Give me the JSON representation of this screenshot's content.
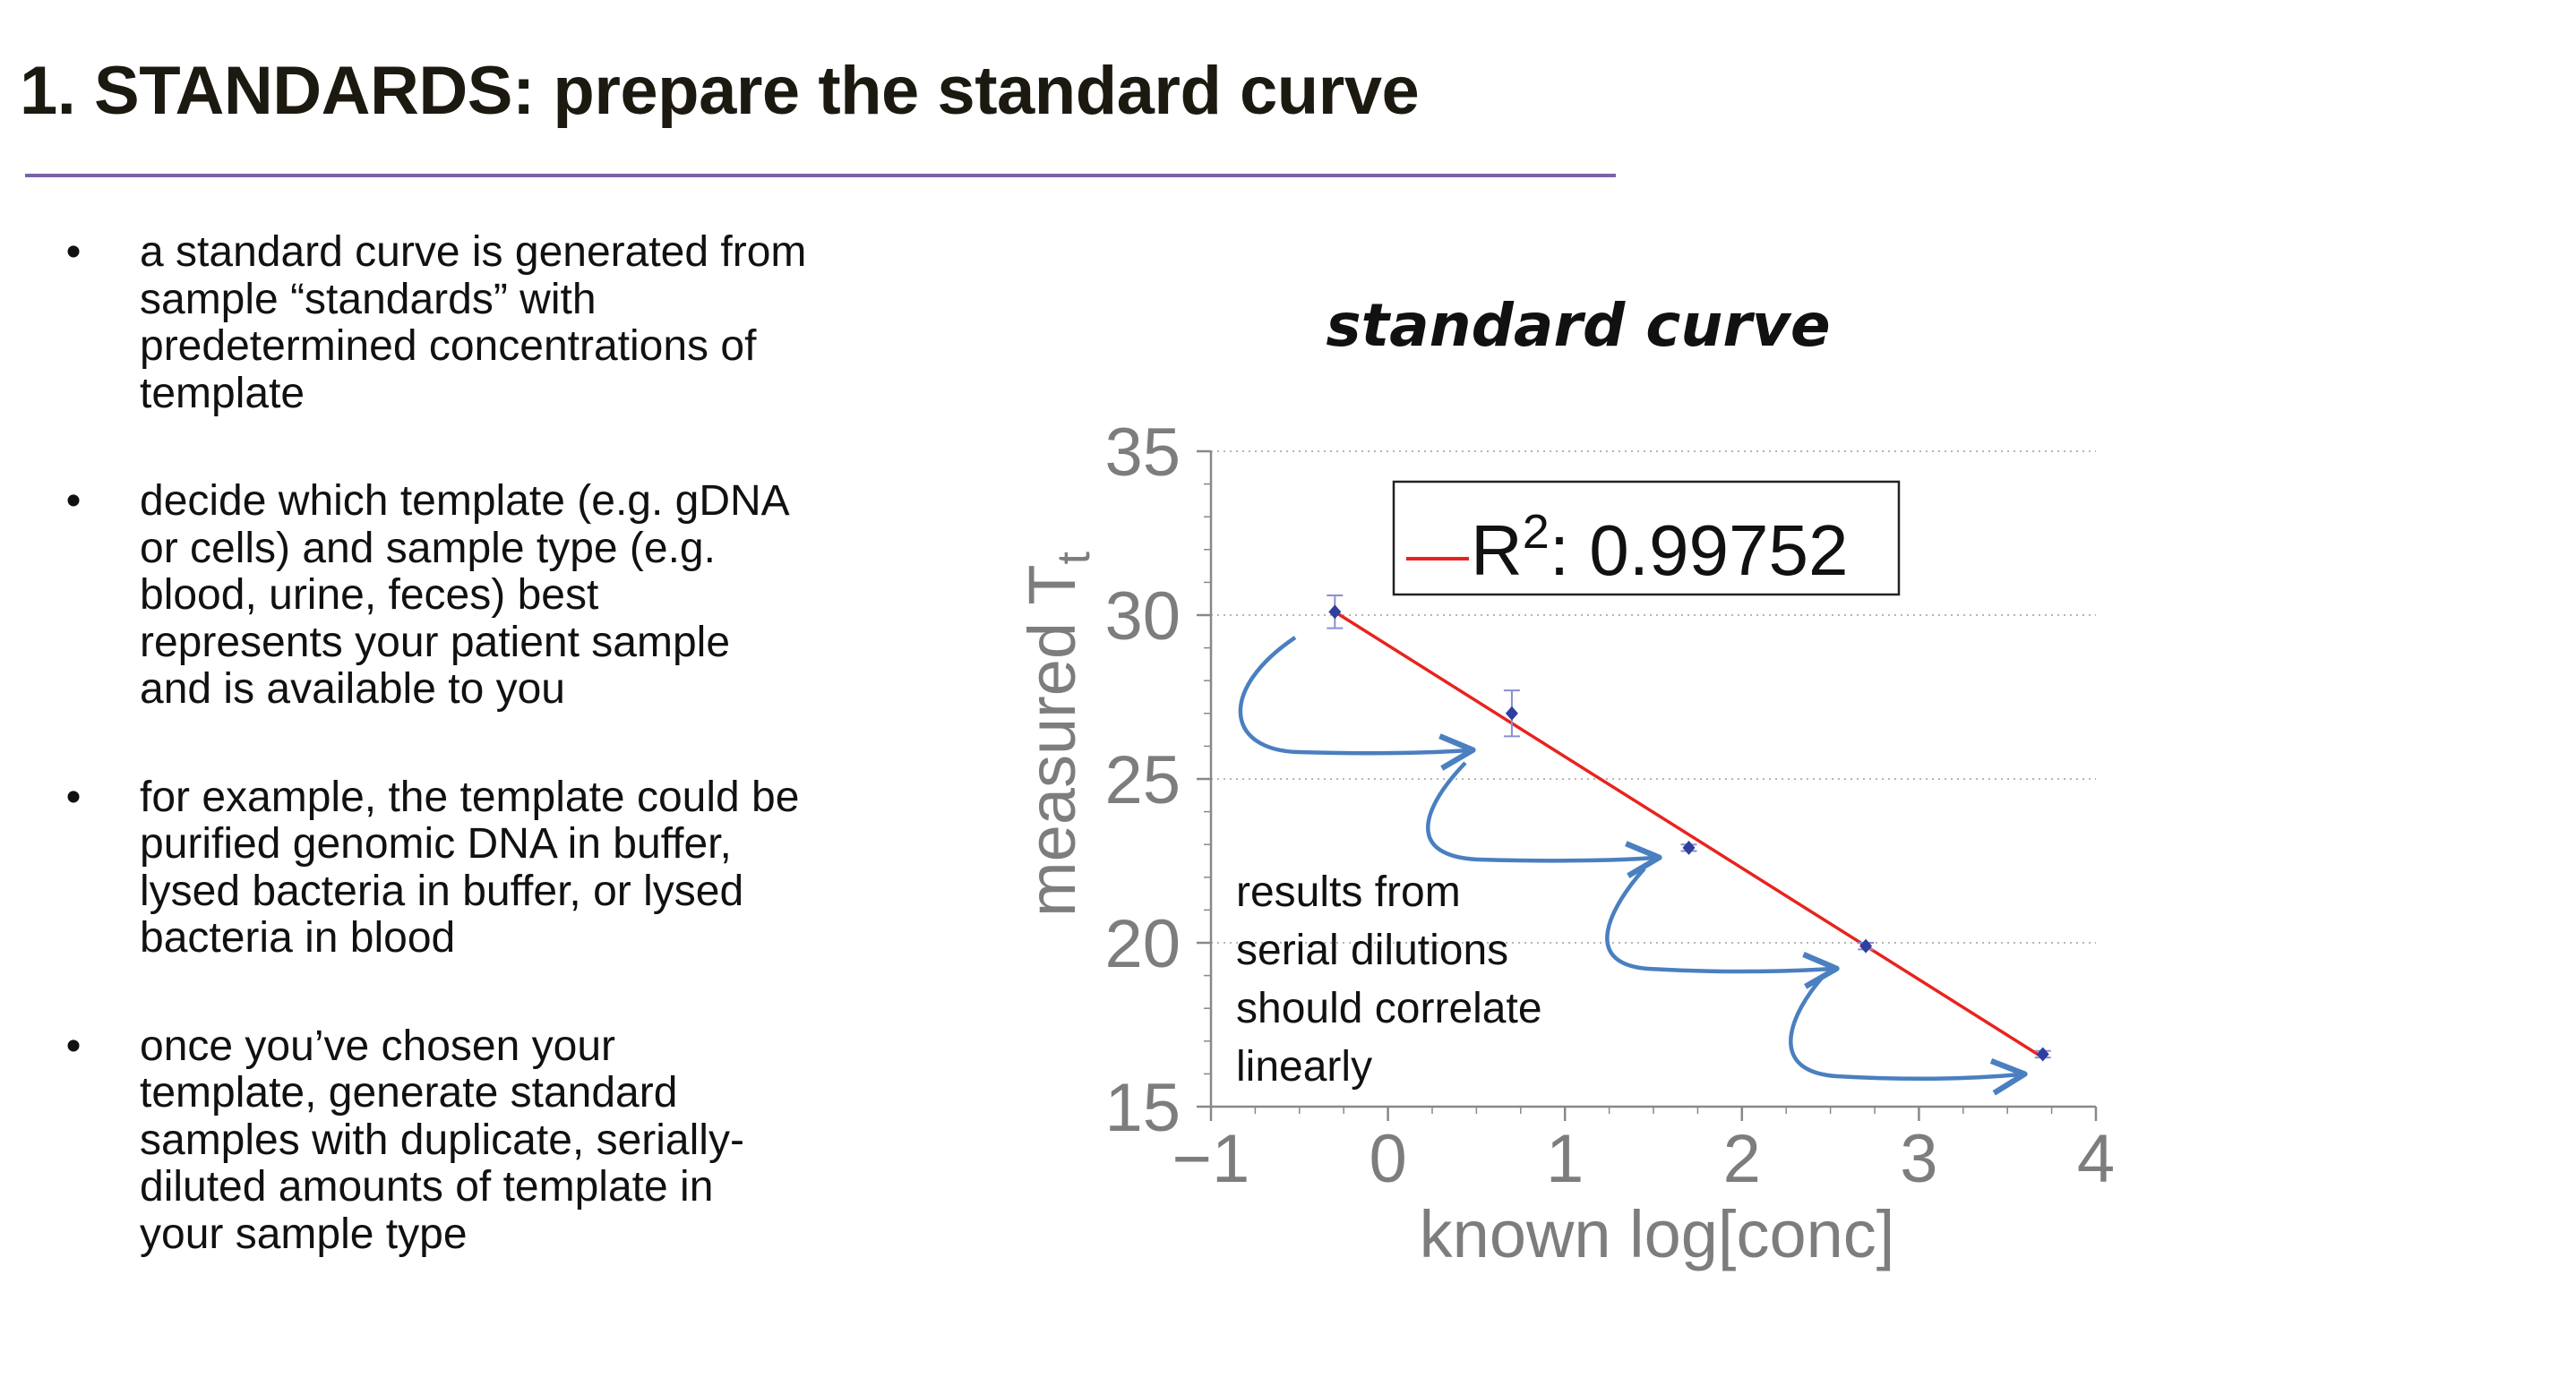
{
  "slide": {
    "title": "1. STANDARDS: prepare the standard curve",
    "rule_color": "#7b62a8"
  },
  "bullets": [
    {
      "marker": "•",
      "lines": [
        "a standard curve is generated from",
        "sample “standards” with",
        "predetermined concentrations of",
        "template"
      ]
    },
    {
      "marker": "•",
      "lines": [
        "decide which template (e.g. gDNA",
        "or cells) and sample type (e.g.",
        "blood, urine, feces) best",
        "represents your patient sample",
        "and is available to you"
      ]
    },
    {
      "marker": "•",
      "lines": [
        "for example, the template could be",
        "purified genomic DNA in buffer,",
        "lysed bacteria in buffer, or lysed",
        "bacteria in blood"
      ]
    },
    {
      "marker": "•",
      "lines": [
        "once you’ve chosen your",
        "template, generate standard",
        "samples with duplicate, serially-",
        "diluted amounts of template in",
        "your sample type"
      ]
    }
  ],
  "chart_data": {
    "type": "scatter",
    "title": "standard curve",
    "xlabel": "known log[conc]",
    "ylabel_main": "measured T",
    "ylabel_subscript": "t",
    "xlim": [
      -1,
      4
    ],
    "ylim": [
      15,
      35
    ],
    "xticks": [
      -1,
      0,
      1,
      2,
      3,
      4
    ],
    "xtick_labels": [
      "−1",
      "0",
      "1",
      "2",
      "3",
      "4"
    ],
    "yticks": [
      15,
      20,
      25,
      30,
      35
    ],
    "ytick_labels": [
      "15",
      "20",
      "25",
      "30",
      "35"
    ],
    "grid": "horizontal dotted",
    "points": [
      {
        "x": -0.3,
        "y": 30.1,
        "err": 0.5
      },
      {
        "x": 0.7,
        "y": 27.0,
        "err": 0.7
      },
      {
        "x": 1.7,
        "y": 22.9,
        "err": 0.1
      },
      {
        "x": 2.7,
        "y": 19.9,
        "err": 0.1
      },
      {
        "x": 3.7,
        "y": 16.6,
        "err": 0.1
      }
    ],
    "fit_line": {
      "x": [
        -0.3,
        3.7
      ],
      "y": [
        30.1,
        16.5
      ],
      "color": "#e8231f"
    },
    "legend": {
      "prefix": "R",
      "superscript": "2",
      "value_text": ": 0.99752",
      "placement": "top-right"
    },
    "annotation": [
      "results from",
      "serial dilutions",
      "should correlate",
      "linearly"
    ],
    "colors": {
      "points": "#2e3f9e",
      "errorbars": "#8a8fd0",
      "arrows": "#4a7fc0",
      "axis_text": "#7d7d7d",
      "fit": "#e8231f"
    }
  }
}
